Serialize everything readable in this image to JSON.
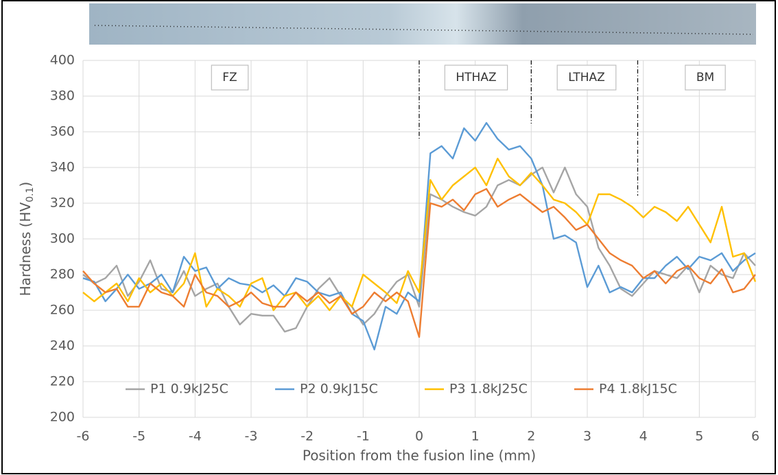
{
  "chart_data": {
    "type": "line",
    "xlabel": "Position from the fusion line (mm)",
    "ylabel": {
      "text": "Hardness (HV",
      "subscript": "0.1",
      "suffix": ")"
    },
    "xlim": [
      -6,
      6
    ],
    "xticks": [
      -6,
      -5,
      -4,
      -3,
      -2,
      -1,
      0,
      1,
      2,
      3,
      4,
      5,
      6
    ],
    "ylim": [
      200,
      400
    ],
    "yticks": [
      200,
      220,
      240,
      260,
      280,
      300,
      320,
      340,
      360,
      380,
      400
    ],
    "grid": true,
    "legend": "bottom",
    "zones": [
      "FZ",
      "HTHAZ",
      "LTHAZ",
      "BM"
    ],
    "boundaries": [
      0,
      2,
      3.9
    ],
    "x": [
      -6,
      -5.8,
      -5.6,
      -5.4,
      -5.2,
      -5,
      -4.8,
      -4.6,
      -4.4,
      -4.2,
      -4,
      -3.8,
      -3.6,
      -3.4,
      -3.2,
      -3,
      -2.8,
      -2.6,
      -2.4,
      -2.2,
      -2,
      -1.8,
      -1.6,
      -1.4,
      -1.2,
      -1,
      -0.8,
      -0.6,
      -0.4,
      -0.2,
      0,
      0.2,
      0.4,
      0.6,
      0.8,
      1,
      1.2,
      1.4,
      1.6,
      1.8,
      2,
      2.2,
      2.4,
      2.6,
      2.8,
      3,
      3.2,
      3.4,
      3.6,
      3.8,
      4,
      4.2,
      4.4,
      4.6,
      4.8,
      5,
      5.2,
      5.4,
      5.6,
      5.8,
      6
    ],
    "series": [
      {
        "name": "P1 0.9kJ25C",
        "color": "#a5a5a5",
        "values": [
          280,
          275,
          278,
          285,
          268,
          276,
          288,
          272,
          270,
          282,
          268,
          272,
          275,
          262,
          252,
          258,
          257,
          257,
          248,
          250,
          262,
          272,
          278,
          268,
          262,
          252,
          258,
          268,
          276,
          280,
          262,
          325,
          322,
          318,
          315,
          313,
          318,
          330,
          333,
          330,
          336,
          340,
          326,
          340,
          325,
          318,
          295,
          285,
          272,
          268,
          275,
          282,
          280,
          278,
          285,
          270,
          285,
          280,
          278,
          292,
          285
        ]
      },
      {
        "name": "P2 0.9kJ15C",
        "color": "#5b9bd5",
        "values": [
          278,
          276,
          265,
          272,
          280,
          272,
          275,
          280,
          270,
          290,
          282,
          284,
          272,
          278,
          275,
          274,
          270,
          274,
          268,
          278,
          276,
          270,
          268,
          270,
          258,
          254,
          238,
          262,
          258,
          270,
          265,
          348,
          352,
          345,
          362,
          355,
          365,
          356,
          350,
          352,
          345,
          330,
          300,
          302,
          298,
          273,
          285,
          270,
          273,
          270,
          278,
          278,
          285,
          290,
          283,
          290,
          288,
          292,
          282,
          288,
          292
        ]
      },
      {
        "name": "P3 1.8kJ25C",
        "color": "#ffc000",
        "values": [
          270,
          265,
          270,
          275,
          265,
          278,
          270,
          275,
          268,
          275,
          292,
          262,
          272,
          268,
          262,
          275,
          278,
          260,
          268,
          270,
          262,
          268,
          260,
          268,
          262,
          280,
          275,
          270,
          264,
          282,
          270,
          333,
          322,
          330,
          335,
          340,
          330,
          345,
          335,
          330,
          337,
          330,
          322,
          320,
          315,
          308,
          325,
          325,
          322,
          318,
          312,
          318,
          315,
          310,
          318,
          308,
          298,
          318,
          290,
          292,
          276
        ]
      },
      {
        "name": "P4 1.8kJ15C",
        "color": "#ed7d31",
        "values": [
          282,
          275,
          270,
          272,
          262,
          262,
          275,
          270,
          268,
          262,
          280,
          270,
          268,
          262,
          265,
          270,
          264,
          262,
          262,
          270,
          265,
          270,
          264,
          268,
          258,
          262,
          270,
          265,
          270,
          265,
          245,
          320,
          318,
          322,
          316,
          325,
          328,
          318,
          322,
          325,
          320,
          315,
          318,
          312,
          305,
          308,
          300,
          292,
          288,
          285,
          278,
          282,
          275,
          282,
          285,
          278,
          275,
          283,
          270,
          272,
          280
        ]
      }
    ]
  }
}
